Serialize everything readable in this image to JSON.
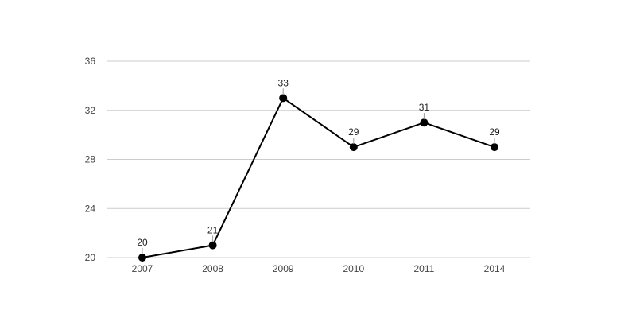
{
  "chart_data": {
    "type": "line",
    "title": "",
    "xlabel": "",
    "ylabel": "",
    "categories": [
      "2007",
      "2008",
      "2009",
      "2010",
      "2011",
      "2014"
    ],
    "series": [
      {
        "values": [
          20,
          21,
          33,
          29,
          31,
          29
        ],
        "color": "#000000"
      }
    ],
    "ylim": [
      20,
      36
    ],
    "yticks": [
      20,
      24,
      28,
      32,
      36
    ],
    "grid": true,
    "legend": "none",
    "data_labels": true
  }
}
